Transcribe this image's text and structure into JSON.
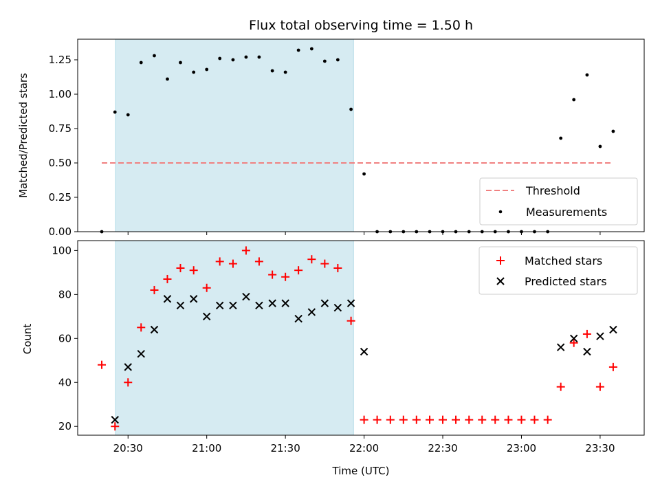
{
  "chart_data": [
    {
      "type": "scatter",
      "title": "Flux total observing time = 1.50 h",
      "ylabel": "Matched/Predicted stars",
      "xlabel": "",
      "x_unit": "time of day (UTC), hours",
      "xlim": [
        20.18,
        23.78
      ],
      "ylim": [
        0,
        1.4
      ],
      "yticks": [
        "0.00",
        "0.25",
        "0.50",
        "0.75",
        "1.00",
        "1.25"
      ],
      "ytick_values": [
        0,
        0.25,
        0.5,
        0.75,
        1.0,
        1.25
      ],
      "shaded_region": [
        20.42,
        21.933
      ],
      "threshold": {
        "name": "Threshold",
        "value": 0.5,
        "x_start": 20.333,
        "x_end": 23.583,
        "color": "#f08080"
      },
      "measurements": {
        "name": "Measurements",
        "color": "#000000",
        "x": [
          20.333,
          20.417,
          20.5,
          20.583,
          20.667,
          20.75,
          20.833,
          20.917,
          21.0,
          21.083,
          21.167,
          21.25,
          21.333,
          21.417,
          21.5,
          21.583,
          21.667,
          21.75,
          21.833,
          21.917,
          22.0,
          22.083,
          22.167,
          22.25,
          22.333,
          22.417,
          22.5,
          22.583,
          22.667,
          22.75,
          22.833,
          22.917,
          23.0,
          23.083,
          23.167,
          23.25,
          23.333,
          23.417,
          23.5,
          23.583
        ],
        "y": [
          0.0,
          0.87,
          0.85,
          1.23,
          1.28,
          1.11,
          1.23,
          1.16,
          1.18,
          1.26,
          1.25,
          1.27,
          1.27,
          1.17,
          1.16,
          1.32,
          1.33,
          1.24,
          1.25,
          0.89,
          0.42,
          0.0,
          0.0,
          0.0,
          0.0,
          0.0,
          0.0,
          0.0,
          0.0,
          0.0,
          0.0,
          0.0,
          0.0,
          0.0,
          0.0,
          0.68,
          0.96,
          1.14,
          0.62,
          0.73
        ]
      },
      "legend": {
        "position": "lower-right",
        "entries": [
          "Threshold",
          "Measurements"
        ]
      }
    },
    {
      "type": "scatter",
      "title": "",
      "ylabel": "Count",
      "xlabel": "Time (UTC)",
      "xlim": [
        20.18,
        23.78
      ],
      "ylim": [
        16,
        104.5
      ],
      "yticks": [
        "20",
        "40",
        "60",
        "80",
        "100"
      ],
      "ytick_values": [
        20,
        40,
        60,
        80,
        100
      ],
      "xticks": [
        "20:30",
        "21:00",
        "21:30",
        "22:00",
        "22:30",
        "23:00",
        "23:30"
      ],
      "xtick_values": [
        20.5,
        21.0,
        21.5,
        22.0,
        22.5,
        23.0,
        23.5
      ],
      "shaded_region": [
        20.42,
        21.933
      ],
      "series": [
        {
          "name": "Matched stars",
          "marker": "plus",
          "color": "#ff0000",
          "x": [
            20.333,
            20.417,
            20.5,
            20.583,
            20.667,
            20.75,
            20.833,
            20.917,
            21.0,
            21.083,
            21.167,
            21.25,
            21.333,
            21.417,
            21.5,
            21.583,
            21.667,
            21.75,
            21.833,
            21.917,
            22.0,
            22.083,
            22.167,
            22.25,
            22.333,
            22.417,
            22.5,
            22.583,
            22.667,
            22.75,
            22.833,
            22.917,
            23.0,
            23.083,
            23.167,
            23.25,
            23.333,
            23.417,
            23.5,
            23.583
          ],
          "y": [
            48,
            20,
            40,
            65,
            82,
            87,
            92,
            91,
            83,
            95,
            94,
            100,
            95,
            89,
            88,
            91,
            96,
            94,
            92,
            68,
            23,
            23,
            23,
            23,
            23,
            23,
            23,
            23,
            23,
            23,
            23,
            23,
            23,
            23,
            23,
            38,
            58,
            62,
            38,
            47
          ]
        },
        {
          "name": "Predicted stars",
          "marker": "x",
          "color": "#000000",
          "x": [
            20.417,
            20.5,
            20.583,
            20.667,
            20.75,
            20.833,
            20.917,
            21.0,
            21.083,
            21.167,
            21.25,
            21.333,
            21.417,
            21.5,
            21.583,
            21.667,
            21.75,
            21.833,
            21.917,
            22.0,
            23.25,
            23.333,
            23.417,
            23.5,
            23.583
          ],
          "y": [
            23,
            47,
            53,
            64,
            78,
            75,
            78,
            70,
            75,
            75,
            79,
            75,
            76,
            76,
            69,
            72,
            76,
            74,
            76,
            54,
            56,
            60,
            54,
            61,
            64
          ]
        }
      ],
      "legend": {
        "position": "top-right",
        "entries": [
          "Matched stars",
          "Predicted stars"
        ]
      }
    }
  ]
}
